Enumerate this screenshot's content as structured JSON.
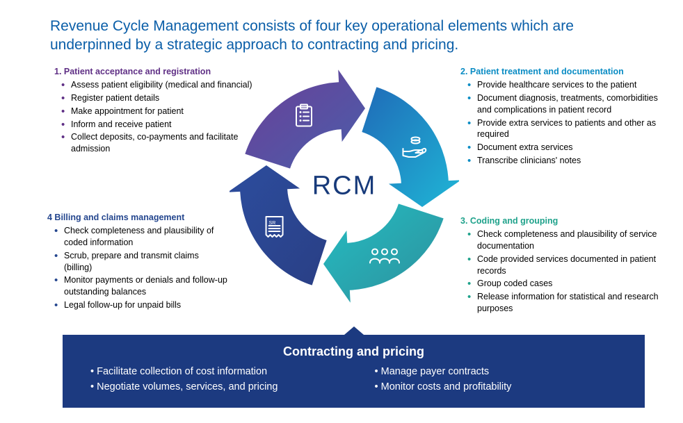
{
  "colors": {
    "title": "#0a5ea8",
    "centerLabel": "#173a7a",
    "footerBg": "#1c3a80",
    "footerText": "#ffffff",
    "q1": "#5f2f85",
    "q2": "#0a8cc4",
    "q3": "#1fa28b",
    "q4": "#24468e",
    "arrow1Start": "#6b3f98",
    "arrow1End": "#4a5eaa",
    "arrow2Start": "#1f6bb8",
    "arrow2End": "#1fb6d6",
    "arrow3Start": "#24bdc2",
    "arrow3End": "#2e8f9c",
    "arrow4Start": "#2c4d9e",
    "arrow4End": "#2a3f85",
    "iconStroke": "#ffffff"
  },
  "title": "Revenue Cycle Management consists of four key operational elements which are underpinned by a strategic approach to contracting and pricing.",
  "centerLabel": "RCM",
  "quadrants": {
    "q1": {
      "title": "1. Patient acceptance and registration",
      "items": [
        "Assess patient eligibility (medical and financial)",
        "Register patient details",
        "Make appointment for patient",
        "Inform and receive patient",
        "Collect deposits, co-payments and facilitate admission"
      ]
    },
    "q2": {
      "title": "2. Patient treatment and documentation",
      "items": [
        "Provide healthcare services to the patient",
        "Document diagnosis, treatments, comorbidities and complications in patient record",
        "Provide extra services to patients and other as required",
        "Document extra services",
        "Transcribe clinicians' notes"
      ]
    },
    "q3": {
      "title": "3. Coding and grouping",
      "items": [
        "Check completeness and plausibility  of service documentation",
        "Code provided services documented in patient records",
        "Group coded cases",
        "Release information for statistical and research purposes"
      ]
    },
    "q4": {
      "title": "4 Billing and claims management",
      "items": [
        "Check completeness and plausibility of coded information",
        "Scrub, prepare and transmit claims (billing)",
        "Monitor payments or denials and follow-up outstanding balances",
        "Legal follow-up for unpaid bills"
      ]
    }
  },
  "footer": {
    "title": "Contracting and pricing",
    "col1": [
      "Facilitate collection of cost information",
      "Negotiate volumes, services, and pricing"
    ],
    "col2": [
      "Manage payer contracts",
      "Monitor costs and profitability"
    ]
  }
}
